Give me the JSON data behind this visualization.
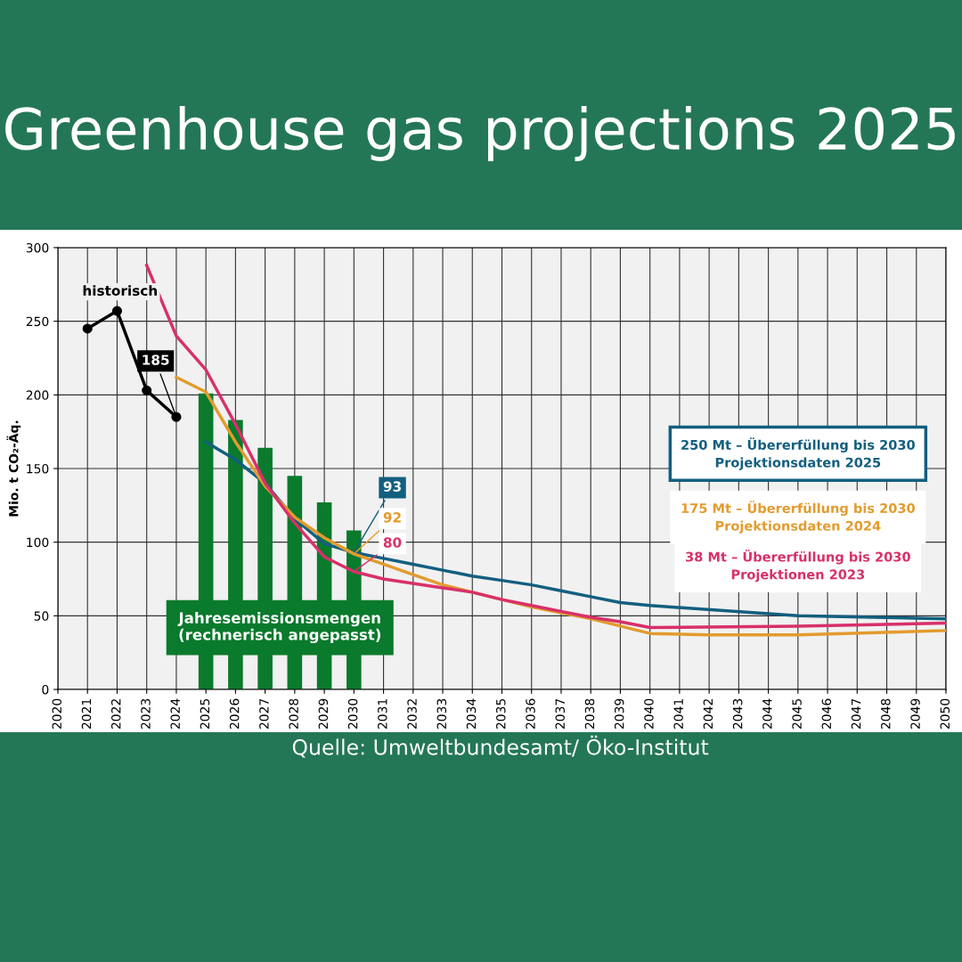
{
  "chart_data": {
    "type": "line",
    "title": "Greenhouse gas projections 2025",
    "ylabel": "Mio. t CO₂-Äq.",
    "xlim": [
      2020,
      2050
    ],
    "xticks": [
      2020,
      2021,
      2022,
      2023,
      2024,
      2025,
      2026,
      2027,
      2028,
      2029,
      2030,
      2031,
      2032,
      2033,
      2034,
      2035,
      2036,
      2037,
      2038,
      2039,
      2040,
      2041,
      2042,
      2043,
      2044,
      2045,
      2046,
      2047,
      2048,
      2049,
      2050
    ],
    "ylim": [
      0,
      300
    ],
    "yticks": [
      0,
      50,
      100,
      150,
      200,
      250,
      300
    ],
    "grid": true,
    "legend": false,
    "series": [
      {
        "name": "Jahresemissionsmengen\n(rechnerisch angepasst)",
        "type": "bar",
        "color": "#0a7a2c",
        "x": [
          2025,
          2026,
          2027,
          2028,
          2029,
          2030
        ],
        "values": [
          201,
          183,
          164,
          145,
          127,
          108
        ]
      },
      {
        "name": "historisch",
        "color": "#000000",
        "marker": "circle",
        "x": [
          2021,
          2022,
          2023,
          2024
        ],
        "values": [
          245,
          257,
          203,
          185
        ],
        "value_labels": [
          null,
          null,
          null,
          "185"
        ]
      },
      {
        "name": "250 Mt – Übererfüllung bis 2030\nProjektionsdaten 2025",
        "color": "#135f7f",
        "marker": "none",
        "x": [
          2025,
          2026,
          2027,
          2028,
          2029,
          2030,
          2031,
          2032,
          2033,
          2034,
          2035,
          2036,
          2037,
          2038,
          2039,
          2040,
          2045,
          2050
        ],
        "values": [
          168,
          156,
          140,
          116,
          99,
          93,
          89,
          85,
          81,
          77,
          74,
          71,
          67,
          63,
          59,
          57,
          50,
          48
        ],
        "value_labels": [
          null,
          null,
          null,
          null,
          null,
          "93",
          null,
          null,
          null,
          null,
          null,
          null,
          null,
          null,
          null,
          null,
          null,
          null
        ]
      },
      {
        "name": "175 Mt – Übererfüllung bis 2030\nProjektionsdaten 2024",
        "color": "#e39b2d",
        "marker": "none",
        "x": [
          2024,
          2025,
          2026,
          2027,
          2028,
          2029,
          2030,
          2031,
          2032,
          2033,
          2034,
          2035,
          2036,
          2037,
          2038,
          2039,
          2040,
          2042,
          2045,
          2050
        ],
        "values": [
          212,
          202,
          168,
          138,
          117,
          103,
          92,
          85,
          78,
          71,
          66,
          61,
          56,
          52,
          48,
          43,
          38,
          37,
          37,
          40
        ],
        "value_labels": [
          null,
          null,
          null,
          null,
          null,
          null,
          "92",
          null,
          null,
          null,
          null,
          null,
          null,
          null,
          null,
          null,
          null,
          null,
          null,
          null
        ]
      },
      {
        "name": "38 Mt – Übererfüllung bis 2030\nProjektionen 2023",
        "color": "#d8306a",
        "marker": "none",
        "x": [
          2023,
          2024,
          2025,
          2026,
          2027,
          2028,
          2029,
          2030,
          2031,
          2032,
          2033,
          2034,
          2035,
          2036,
          2037,
          2038,
          2039,
          2040,
          2045,
          2050
        ],
        "values": [
          288,
          240,
          217,
          180,
          140,
          113,
          90,
          80,
          75,
          72,
          69,
          66,
          61,
          57,
          53,
          49,
          46,
          42,
          43,
          45
        ],
        "value_labels": [
          null,
          null,
          null,
          null,
          null,
          null,
          null,
          "80",
          null,
          null,
          null,
          null,
          null,
          null,
          null,
          null,
          null,
          null,
          null,
          null
        ]
      }
    ],
    "annotations": [
      "Quelle: Umweltbundesamt/ Öko-Institut"
    ]
  }
}
